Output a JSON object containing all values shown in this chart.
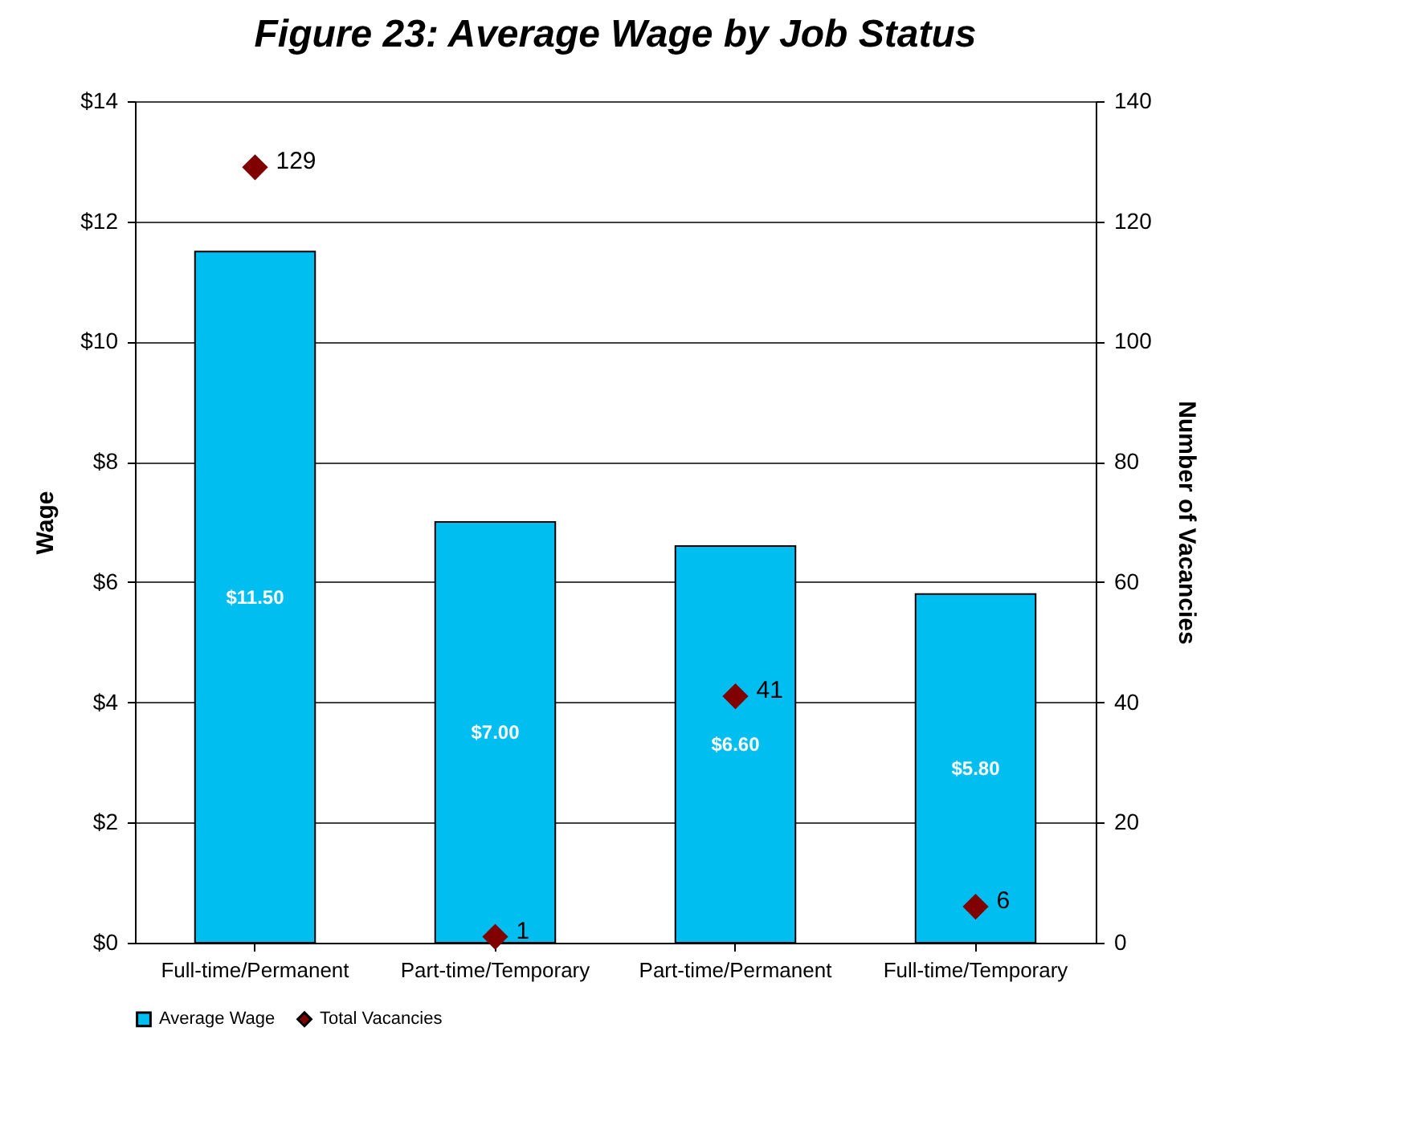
{
  "chart_data": {
    "type": "bar",
    "title": "Figure 23: Average Wage by Job Status",
    "ylabel": "Wage",
    "y2label": "Number of Vacancies",
    "categories": [
      "Full-time/Permanent",
      "Part-time/Temporary",
      "Part-time/Permanent",
      "Full-time/Temporary"
    ],
    "series": [
      {
        "name": "Average Wage",
        "color": "#00bff0",
        "values": [
          11.5,
          7.0,
          6.6,
          5.8
        ],
        "value_labels": [
          "$11.50",
          "$7.00",
          "$6.60",
          "$5.80"
        ]
      },
      {
        "name": "Total Vacancies",
        "type": "scatter",
        "axis": "y2",
        "marker": "diamond",
        "color": "#800000",
        "values": [
          129,
          1,
          41,
          6
        ],
        "value_labels": [
          "129",
          "1",
          "41",
          "6"
        ]
      }
    ],
    "ylim": [
      0,
      14
    ],
    "yticks": [
      {
        "value": 0,
        "label": "$0"
      },
      {
        "value": 2,
        "label": "$2"
      },
      {
        "value": 4,
        "label": "$4"
      },
      {
        "value": 6,
        "label": "$6"
      },
      {
        "value": 8,
        "label": "$8"
      },
      {
        "value": 10,
        "label": "$10"
      },
      {
        "value": 12,
        "label": "$12"
      },
      {
        "value": 14,
        "label": "$14"
      }
    ],
    "y2lim": [
      0,
      140
    ],
    "y2ticks": [
      0,
      20,
      40,
      60,
      80,
      100,
      120,
      140
    ],
    "grid": "y",
    "legend": "bottom"
  }
}
